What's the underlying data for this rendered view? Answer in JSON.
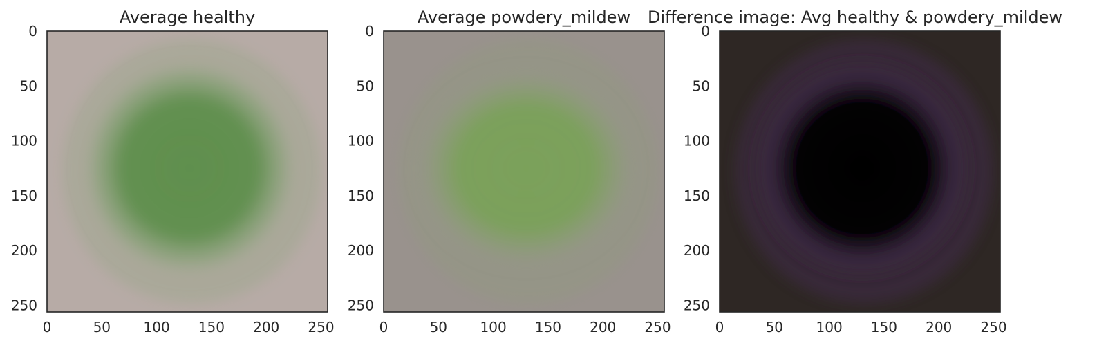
{
  "chart_data": [
    {
      "type": "image",
      "title": "Average healthy",
      "xlim": [
        0,
        256
      ],
      "ylim": [
        256,
        0
      ],
      "xticks": [
        0,
        50,
        100,
        150,
        200,
        250
      ],
      "yticks": [
        0,
        50,
        100,
        150,
        200,
        250
      ],
      "xtick_labels": [
        "0",
        "50",
        "100",
        "150",
        "200",
        "250"
      ],
      "ytick_labels": [
        "0",
        "50",
        "100",
        "150",
        "200",
        "250"
      ],
      "grid": false,
      "colors": {
        "background": "#b7aba6",
        "leaf_center": "#5f8f4d",
        "leaf_edge": "#93a583",
        "vein": "#7a9c5d"
      }
    },
    {
      "type": "image",
      "title": "Average powdery_mildew",
      "xlim": [
        0,
        256
      ],
      "ylim": [
        256,
        0
      ],
      "xticks": [
        0,
        50,
        100,
        150,
        200,
        250
      ],
      "yticks": [
        0,
        50,
        100,
        150,
        200,
        250
      ],
      "xtick_labels": [
        "0",
        "50",
        "100",
        "150",
        "200",
        "250"
      ],
      "ytick_labels": [
        "0",
        "50",
        "100",
        "150",
        "200",
        "250"
      ],
      "grid": false,
      "colors": {
        "background": "#99928d",
        "leaf_center": "#7ba15a",
        "leaf_edge": "#8f9b7c",
        "vein": "#8aa870"
      }
    },
    {
      "type": "image",
      "title": "Difference image: Avg healthy & powdery_mildew",
      "xlim": [
        0,
        256
      ],
      "ylim": [
        256,
        0
      ],
      "xticks": [
        0,
        50,
        100,
        150,
        200,
        250
      ],
      "yticks": [
        0,
        50,
        100,
        150,
        200,
        250
      ],
      "xtick_labels": [
        "0",
        "50",
        "100",
        "150",
        "200",
        "250"
      ],
      "ytick_labels": [
        "0",
        "50",
        "100",
        "150",
        "200",
        "250"
      ],
      "grid": false,
      "colors": {
        "background": "#2e2724",
        "leaf_center": "#050305",
        "leaf_edge": "#3f2a48",
        "vein": "#10160f"
      }
    }
  ]
}
